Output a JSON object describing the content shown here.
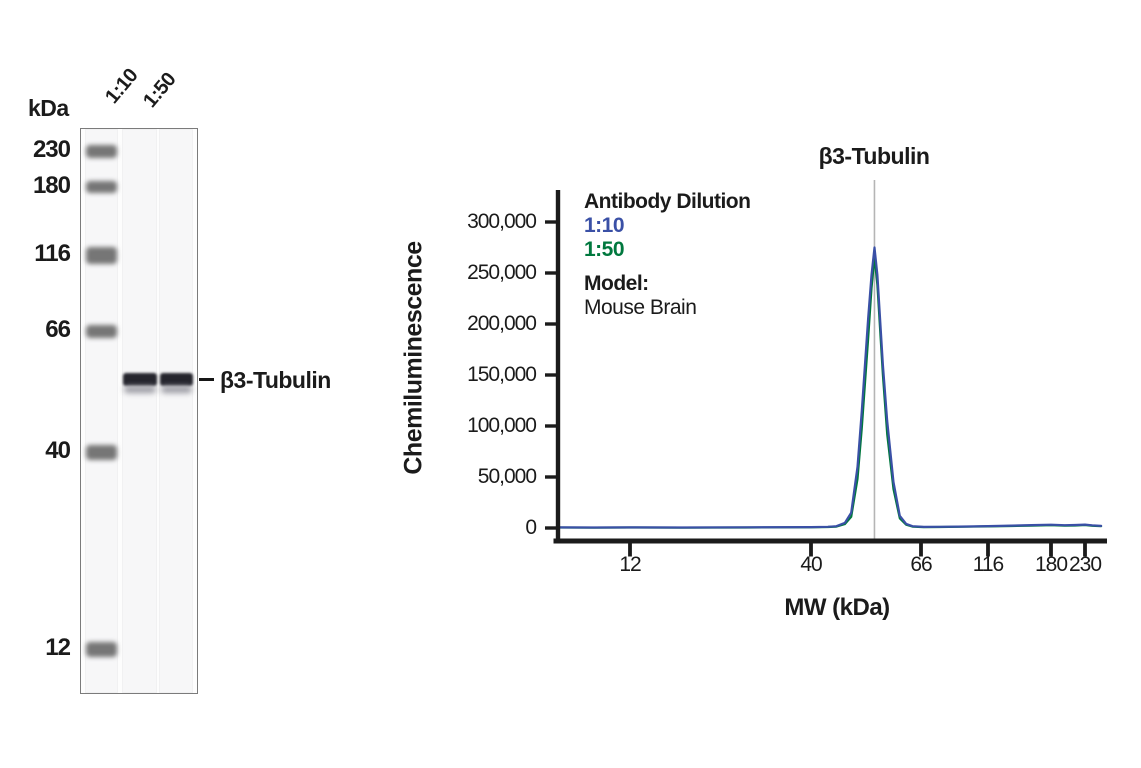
{
  "blot": {
    "unit_label": "kDa",
    "lane_labels": [
      "1:10",
      "1:50"
    ],
    "markers": [
      {
        "kda": "230",
        "y": 150,
        "band_h": 13
      },
      {
        "kda": "180",
        "y": 186,
        "band_h": 12
      },
      {
        "kda": "116",
        "y": 254,
        "band_h": 17
      },
      {
        "kda": "66",
        "y": 330,
        "band_h": 13
      },
      {
        "kda": "40",
        "y": 451,
        "band_h": 15
      },
      {
        "kda": "12",
        "y": 648,
        "band_h": 15
      }
    ],
    "band_annotation": "β3-Tubulin"
  },
  "legend": {
    "title": "Antibody Dilution",
    "entries": [
      {
        "label": "1:10",
        "color": "#3A50A6"
      },
      {
        "label": "1:50",
        "color": "#00783E"
      }
    ],
    "model_label": "Model:",
    "model_value": "Mouse Brain"
  },
  "chart_data": {
    "type": "line",
    "title": "β3-Tubulin",
    "xlabel": "MW (kDa)",
    "ylabel": "Chemiluminescence",
    "x_scale": "log-like molecular-weight axis",
    "x_ticks": [
      12,
      40,
      66,
      116,
      180,
      230
    ],
    "x_tick_labels": [
      "12",
      "40",
      "66",
      "116",
      "180",
      "230"
    ],
    "y_ticks": [
      0,
      50000,
      100000,
      150000,
      200000,
      250000,
      300000
    ],
    "y_tick_labels": [
      "0",
      "50,000",
      "100,000",
      "150,000",
      "200,000",
      "250,000",
      "300,000"
    ],
    "ylim": [
      0,
      335000
    ],
    "grid": false,
    "legend_position": "upper-left inside plot",
    "peak_marker_kda": 55,
    "peak_marker_color": "#b5b5b5",
    "series": [
      {
        "name": "1:10",
        "color": "#3A50A6",
        "points": [
          [
            4,
            600
          ],
          [
            8,
            500
          ],
          [
            12,
            600
          ],
          [
            20,
            500
          ],
          [
            30,
            650
          ],
          [
            40,
            900
          ],
          [
            44,
            1200
          ],
          [
            46,
            1800
          ],
          [
            48,
            5000
          ],
          [
            49.5,
            15000
          ],
          [
            51,
            60000
          ],
          [
            52,
            115000
          ],
          [
            53.5,
            205000
          ],
          [
            54.3,
            248000
          ],
          [
            55,
            275000
          ],
          [
            55.7,
            248000
          ],
          [
            57,
            160000
          ],
          [
            58,
            105000
          ],
          [
            59.5,
            45000
          ],
          [
            61,
            12000
          ],
          [
            62.5,
            4000
          ],
          [
            64,
            1800
          ],
          [
            68,
            1100
          ],
          [
            80,
            1200
          ],
          [
            100,
            1500
          ],
          [
            116,
            1900
          ],
          [
            140,
            2400
          ],
          [
            160,
            2800
          ],
          [
            180,
            3200
          ],
          [
            200,
            2700
          ],
          [
            215,
            2900
          ],
          [
            230,
            3300
          ],
          [
            240,
            2600
          ],
          [
            252,
            2100
          ]
        ]
      },
      {
        "name": "1:50",
        "color": "#00783E",
        "points": [
          [
            4,
            450
          ],
          [
            8,
            400
          ],
          [
            12,
            480
          ],
          [
            20,
            400
          ],
          [
            30,
            520
          ],
          [
            40,
            700
          ],
          [
            44,
            950
          ],
          [
            46,
            1400
          ],
          [
            48,
            3800
          ],
          [
            49.5,
            11000
          ],
          [
            51,
            48000
          ],
          [
            52,
            98000
          ],
          [
            53.5,
            185000
          ],
          [
            54.3,
            235000
          ],
          [
            55,
            266000
          ],
          [
            55.7,
            238000
          ],
          [
            57,
            150000
          ],
          [
            58,
            92000
          ],
          [
            59.5,
            38000
          ],
          [
            61,
            9500
          ],
          [
            62.5,
            3200
          ],
          [
            64,
            1400
          ],
          [
            68,
            900
          ],
          [
            80,
            1000
          ],
          [
            100,
            1250
          ],
          [
            116,
            1600
          ],
          [
            140,
            2000
          ],
          [
            160,
            2400
          ],
          [
            180,
            2800
          ],
          [
            200,
            2300
          ],
          [
            215,
            2500
          ],
          [
            230,
            2900
          ],
          [
            240,
            2200
          ],
          [
            252,
            1800
          ]
        ]
      }
    ]
  }
}
